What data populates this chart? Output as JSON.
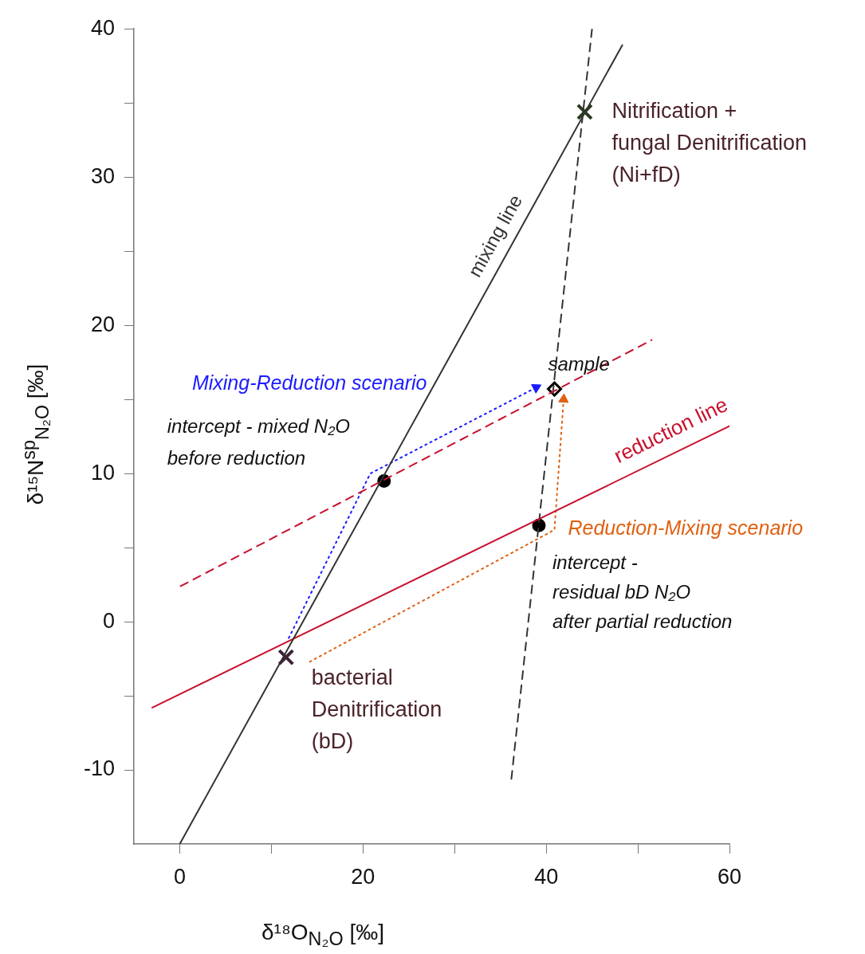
{
  "chart_data": {
    "type": "scatter",
    "xlabel": "δ¹⁸O$_{N₂O}$ [‰]",
    "ylabel": "δ¹⁵N$^{sp}$$_{N₂O}$ [‰]",
    "xlim": [
      -5,
      60
    ],
    "xticks": [
      0,
      {
        "value": 10,
        "label": null
      },
      20,
      {
        "value": 30,
        "label": null
      },
      40,
      {
        "value": 50,
        "label": null
      },
      60
    ],
    "ylim": [
      -15,
      40
    ],
    "yticks": [
      -10,
      {
        "value": -5,
        "label": null
      },
      0,
      {
        "value": 5,
        "label": null
      },
      10,
      {
        "value": 15,
        "label": null
      },
      20,
      {
        "value": 25,
        "label": null
      },
      30,
      {
        "value": 35,
        "label": null
      },
      40
    ],
    "grid": false,
    "legend": false,
    "series": [
      {
        "type": "line",
        "name": "mixing line",
        "color": "#333333",
        "x": [
          0,
          48.3
        ],
        "values": [
          -15,
          38.9
        ],
        "marker": "none",
        "line_style": "solid"
      },
      {
        "type": "line",
        "name": "reduction line",
        "color": "#c8102e",
        "x": [
          -3.0,
          60
        ],
        "values": [
          -5.8,
          13.2
        ],
        "marker": "none",
        "line_style": "solid"
      },
      {
        "type": "line",
        "color": "#c8102e",
        "x": [
          0.1,
          51.5
        ],
        "values": [
          2.4,
          19.0
        ],
        "marker": "none",
        "line_style": "dashed"
      },
      {
        "type": "line",
        "color": "#333333",
        "x": [
          36.2,
          45.0
        ],
        "values": [
          -10.6,
          40
        ],
        "marker": "none",
        "line_style": "dashed"
      },
      {
        "type": "line",
        "name": "Mixing-Reduction scenario",
        "color": "#1a1aff",
        "x": [
          11.9,
          20.8,
          38.9
        ],
        "values": [
          -1.1,
          10.0,
          15.8
        ],
        "line_style": "dotted"
      },
      {
        "type": "line",
        "name": "Reduction-Mixing scenario",
        "color": "#e06010",
        "x": [
          14.2,
          40.9,
          41.9
        ],
        "values": [
          -2.7,
          6.2,
          15.0
        ],
        "line_style": "dotted"
      },
      {
        "color": "#3b2335",
        "x": [
          11.6
        ],
        "values": [
          -2.4
        ],
        "marker": "cross"
      },
      {
        "color": "#2b3a1f",
        "x": [
          44.2
        ],
        "values": [
          34.4
        ],
        "marker": "cross"
      },
      {
        "color": "#000000",
        "x": [
          22.3,
          39.2
        ],
        "values": [
          9.5,
          6.5
        ],
        "marker": "circle"
      },
      {
        "color": "#000000",
        "x": [
          40.9
        ],
        "values": [
          15.7
        ],
        "marker": "diamond"
      }
    ],
    "annotations": [
      {
        "text": "Nitrification +\nfungal Denitrification\n(Ni+fD)",
        "x": 44.2,
        "y": 34.4
      },
      {
        "text": "bacterial\nDenitrification\n(bD)",
        "x": 11.6,
        "y": -2.4
      },
      {
        "text": "sample",
        "x": 40.9,
        "y": 15.7
      },
      {
        "text": "intercept - mixed N₂O\nbefore reduction",
        "x": 22.3,
        "y": 9.5
      },
      {
        "text": "intercept -\nresidual bD N₂O\nafter partial reduction",
        "x": 39.2,
        "y": 6.5
      }
    ]
  }
}
